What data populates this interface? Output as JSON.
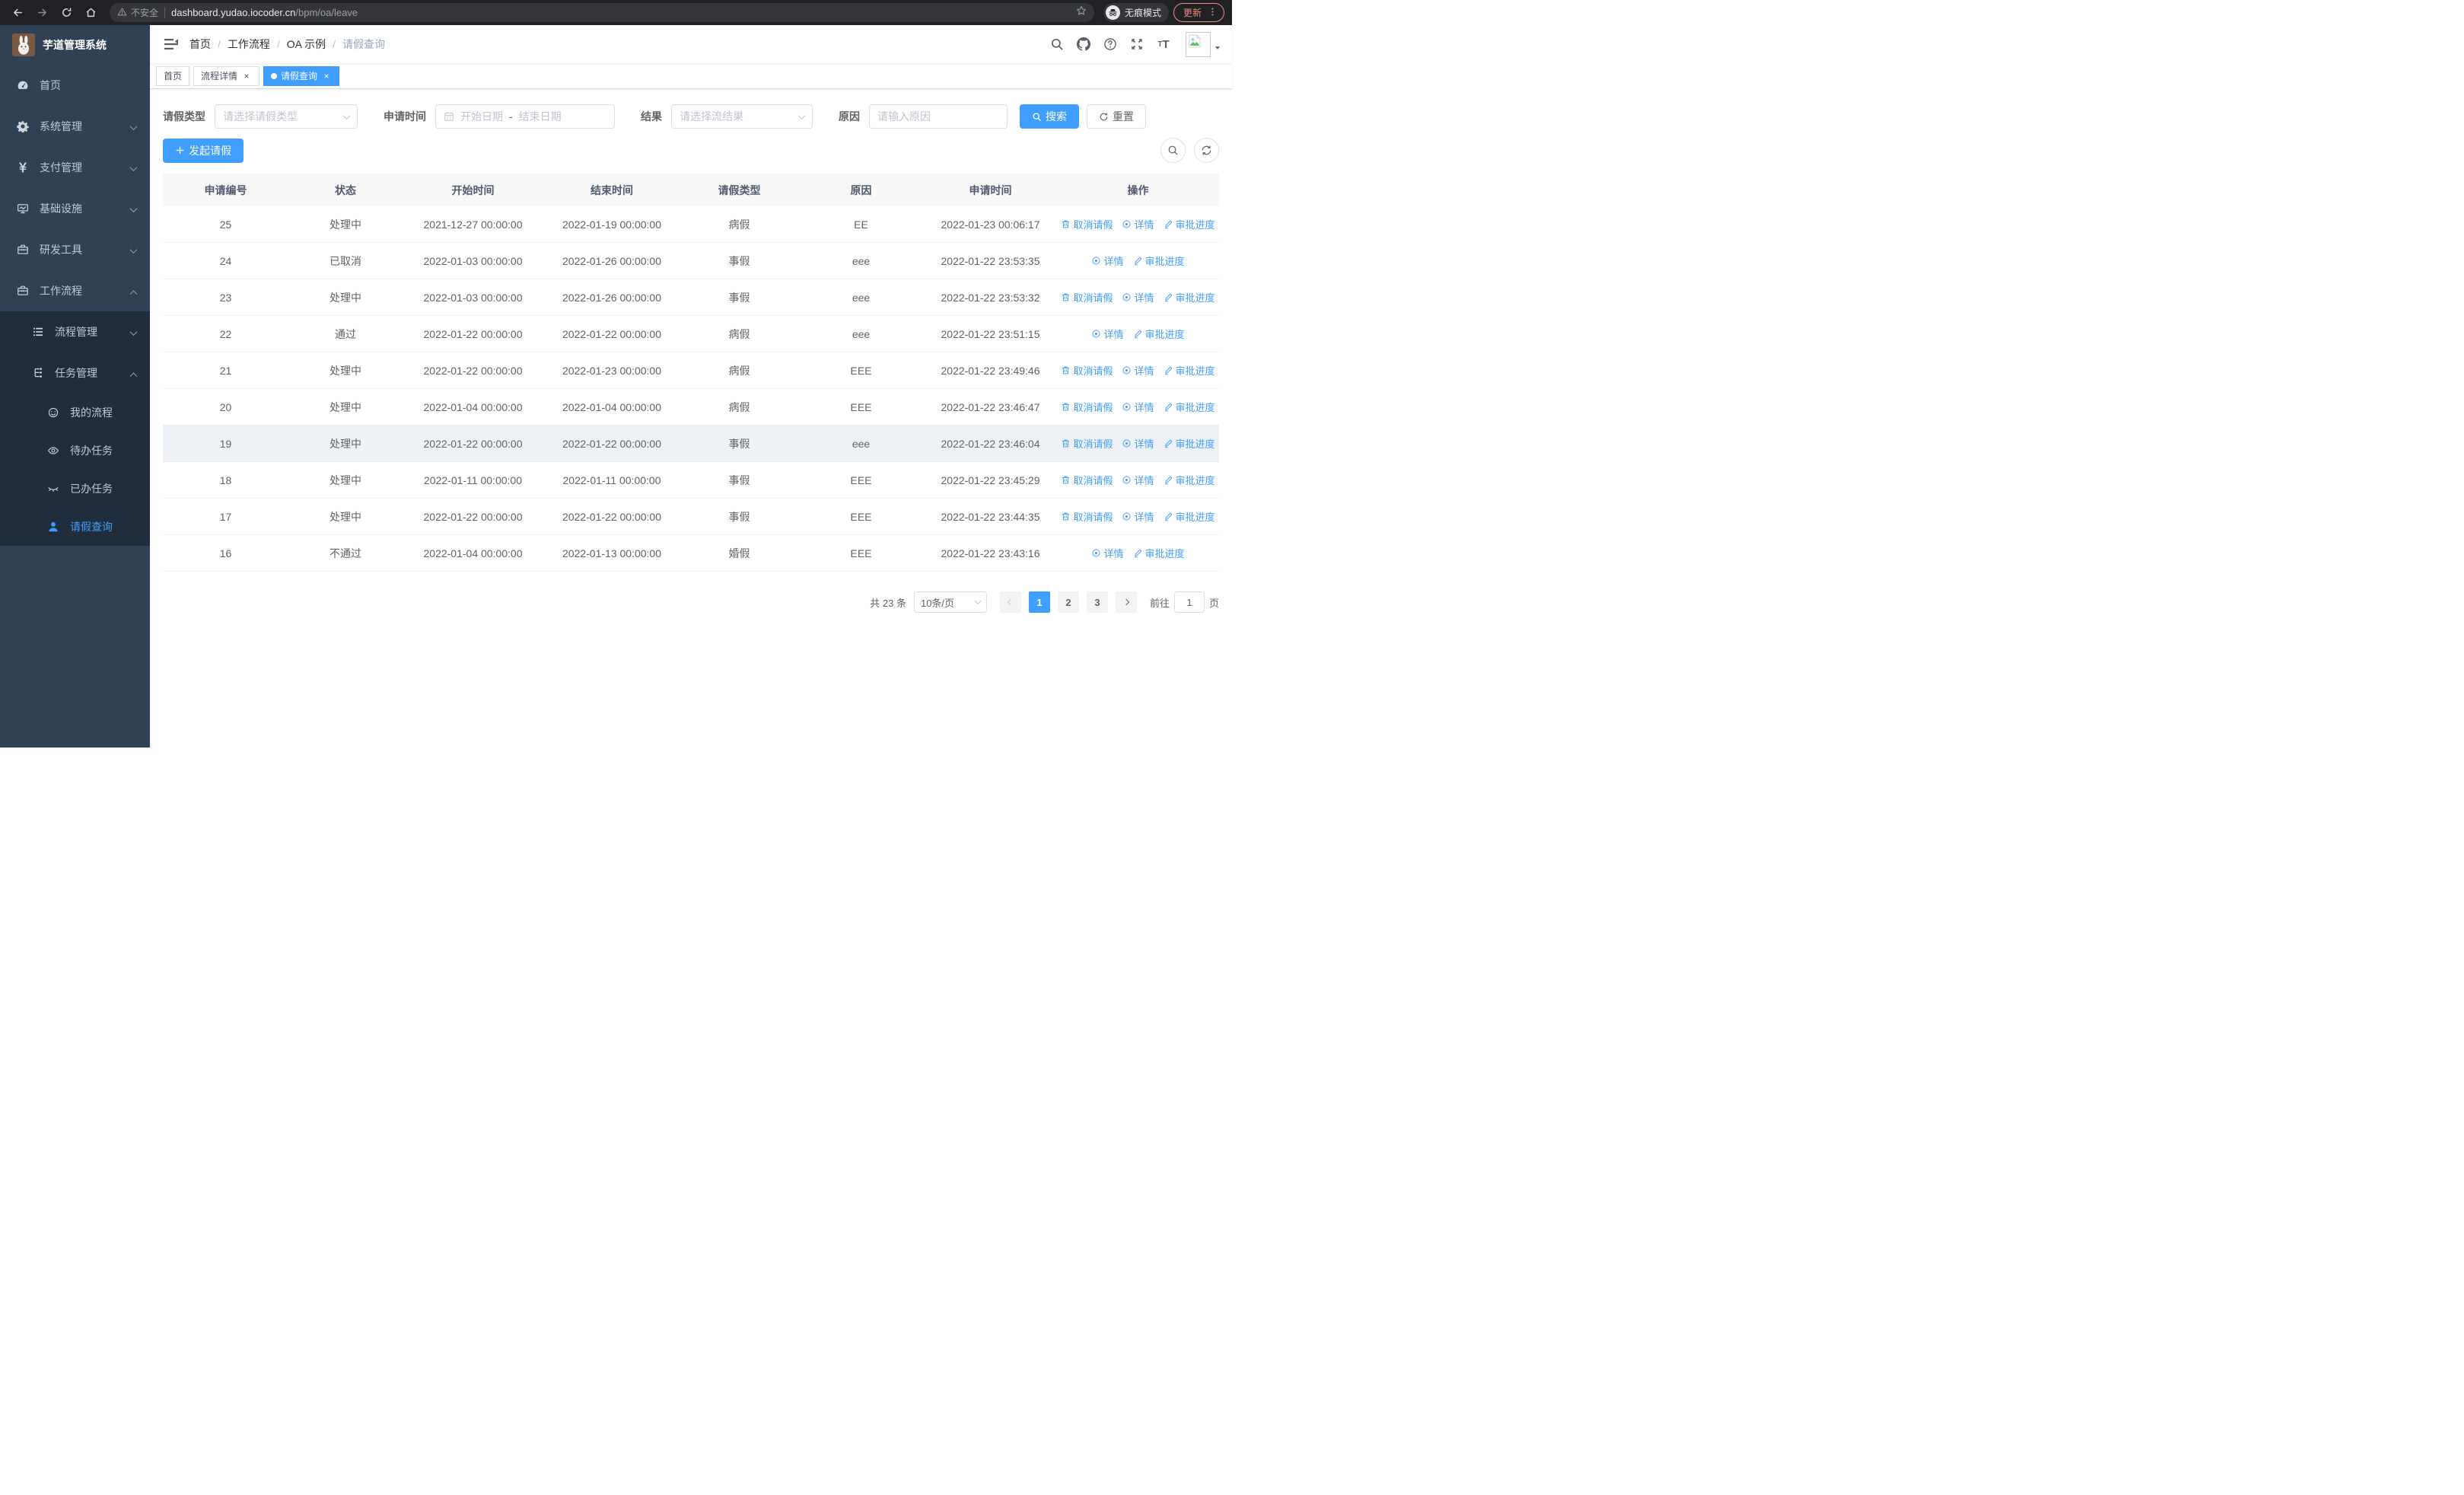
{
  "browser": {
    "security": "不安全",
    "url_host": "dashboard.yudao.iocoder.cn",
    "url_path": "/bpm/oa/leave",
    "incognito": "无痕模式",
    "update": "更新"
  },
  "sidebar": {
    "app_title": "芋道管理系统",
    "menu_top": [
      {
        "label": "首页",
        "icon": "dashboard",
        "chevron": null
      },
      {
        "label": "系统管理",
        "icon": "gear",
        "chevron": "down"
      },
      {
        "label": "支付管理",
        "icon": "yen",
        "chevron": "down"
      },
      {
        "label": "基础设施",
        "icon": "monitor",
        "chevron": "down"
      },
      {
        "label": "研发工具",
        "icon": "toolbox",
        "chevron": "down"
      },
      {
        "label": "工作流程",
        "icon": "briefcase",
        "chevron": "up"
      }
    ],
    "menu_sub": [
      {
        "label": "流程管理",
        "icon": "list",
        "chevron": "down",
        "level": 2,
        "active": false
      },
      {
        "label": "任务管理",
        "icon": "tree",
        "chevron": "up",
        "level": 2,
        "active": false
      },
      {
        "label": "我的流程",
        "icon": "face",
        "chevron": null,
        "level": 3,
        "active": false
      },
      {
        "label": "待办任务",
        "icon": "eyeOpen",
        "chevron": null,
        "level": 3,
        "active": false
      },
      {
        "label": "已办任务",
        "icon": "eyeClosed",
        "chevron": null,
        "level": 3,
        "active": false
      },
      {
        "label": "请假查询",
        "icon": "user",
        "chevron": null,
        "level": 3,
        "active": true
      }
    ]
  },
  "navbar": {
    "breadcrumb": [
      "首页",
      "工作流程",
      "OA 示例",
      "请假查询"
    ]
  },
  "tags": [
    {
      "label": "首页",
      "closable": false,
      "active": false
    },
    {
      "label": "流程详情",
      "closable": true,
      "active": false
    },
    {
      "label": "请假查询",
      "closable": true,
      "active": true
    }
  ],
  "filters": {
    "type_label": "请假类型",
    "type_placeholder": "请选择请假类型",
    "time_label": "申请时间",
    "start_placeholder": "开始日期",
    "range_separator": "-",
    "end_placeholder": "结束日期",
    "result_label": "结果",
    "result_placeholder": "请选择流结果",
    "reason_label": "原因",
    "reason_placeholder": "请输入原因",
    "search_label": "搜索",
    "reset_label": "重置"
  },
  "toolbar": {
    "create_label": "发起请假"
  },
  "table": {
    "columns": [
      "申请编号",
      "状态",
      "开始时间",
      "结束时间",
      "请假类型",
      "原因",
      "申请时间",
      "操作"
    ],
    "rows": [
      {
        "id": "25",
        "status": "处理中",
        "start": "2021-12-27 00:00:00",
        "end": "2022-01-19 00:00:00",
        "type": "病假",
        "reason": "EE",
        "apply": "2022-01-23 00:06:17",
        "actions": [
          "cancel",
          "detail",
          "progress"
        ],
        "highlight": false
      },
      {
        "id": "24",
        "status": "已取消",
        "start": "2022-01-03 00:00:00",
        "end": "2022-01-26 00:00:00",
        "type": "事假",
        "reason": "eee",
        "apply": "2022-01-22 23:53:35",
        "actions": [
          "detail",
          "progress"
        ],
        "highlight": false
      },
      {
        "id": "23",
        "status": "处理中",
        "start": "2022-01-03 00:00:00",
        "end": "2022-01-26 00:00:00",
        "type": "事假",
        "reason": "eee",
        "apply": "2022-01-22 23:53:32",
        "actions": [
          "cancel",
          "detail",
          "progress"
        ],
        "highlight": false
      },
      {
        "id": "22",
        "status": "通过",
        "start": "2022-01-22 00:00:00",
        "end": "2022-01-22 00:00:00",
        "type": "病假",
        "reason": "eee",
        "apply": "2022-01-22 23:51:15",
        "actions": [
          "detail",
          "progress"
        ],
        "highlight": false
      },
      {
        "id": "21",
        "status": "处理中",
        "start": "2022-01-22 00:00:00",
        "end": "2022-01-23 00:00:00",
        "type": "病假",
        "reason": "EEE",
        "apply": "2022-01-22 23:49:46",
        "actions": [
          "cancel",
          "detail",
          "progress"
        ],
        "highlight": false
      },
      {
        "id": "20",
        "status": "处理中",
        "start": "2022-01-04 00:00:00",
        "end": "2022-01-04 00:00:00",
        "type": "病假",
        "reason": "EEE",
        "apply": "2022-01-22 23:46:47",
        "actions": [
          "cancel",
          "detail",
          "progress"
        ],
        "highlight": false
      },
      {
        "id": "19",
        "status": "处理中",
        "start": "2022-01-22 00:00:00",
        "end": "2022-01-22 00:00:00",
        "type": "事假",
        "reason": "eee",
        "apply": "2022-01-22 23:46:04",
        "actions": [
          "cancel",
          "detail",
          "progress"
        ],
        "highlight": true
      },
      {
        "id": "18",
        "status": "处理中",
        "start": "2022-01-11 00:00:00",
        "end": "2022-01-11 00:00:00",
        "type": "事假",
        "reason": "EEE",
        "apply": "2022-01-22 23:45:29",
        "actions": [
          "cancel",
          "detail",
          "progress"
        ],
        "highlight": false
      },
      {
        "id": "17",
        "status": "处理中",
        "start": "2022-01-22 00:00:00",
        "end": "2022-01-22 00:00:00",
        "type": "事假",
        "reason": "EEE",
        "apply": "2022-01-22 23:44:35",
        "actions": [
          "cancel",
          "detail",
          "progress"
        ],
        "highlight": false
      },
      {
        "id": "16",
        "status": "不通过",
        "start": "2022-01-04 00:00:00",
        "end": "2022-01-13 00:00:00",
        "type": "婚假",
        "reason": "EEE",
        "apply": "2022-01-22 23:43:16",
        "actions": [
          "detail",
          "progress"
        ],
        "highlight": false
      }
    ]
  },
  "action_labels": {
    "cancel": "取消请假",
    "detail": "详情",
    "progress": "审批进度"
  },
  "pagination": {
    "total_label": "共 23 条",
    "size_label": "10条/页",
    "pages": [
      "1",
      "2",
      "3"
    ],
    "current": "1",
    "goto_label": "前往",
    "goto_value": "1",
    "page_unit": "页"
  },
  "colors": {
    "primary": "#409EFF",
    "sidebar_bg": "#304156",
    "submenu_bg": "#1f2d3d"
  }
}
